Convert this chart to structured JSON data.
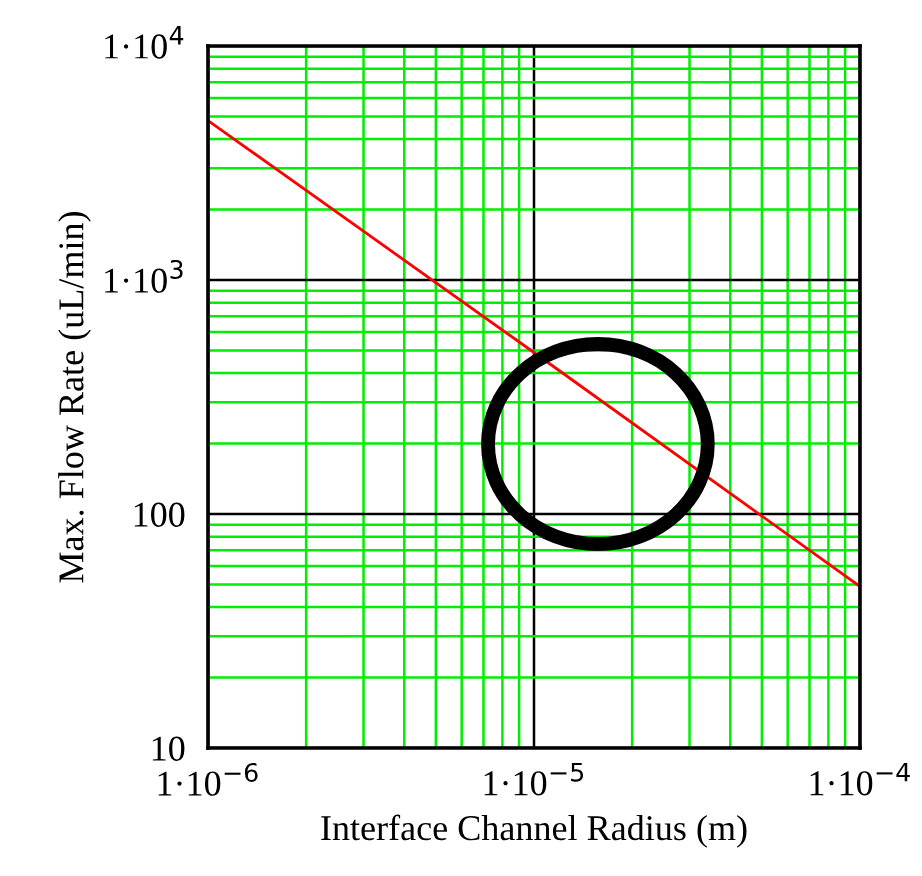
{
  "chart_data": {
    "type": "line",
    "xlabel": "Interface Channel Radius (m)",
    "ylabel": "Max. Flow Rate (uL/min)",
    "x": [
      1e-06,
      1e-05,
      0.0001
    ],
    "series": [
      {
        "color": "#ff0000",
        "values": [
          4800,
          490,
          49
        ]
      }
    ],
    "log": "xy",
    "xlim": [
      1e-06,
      0.0001
    ],
    "ylim": [
      10,
      10000
    ],
    "xticks": [
      {
        "value": 1e-06,
        "label": "1·10$^{−6}$"
      },
      {
        "value": 2e-06,
        "label": null
      },
      {
        "value": 3e-06,
        "label": null
      },
      {
        "value": 4e-06,
        "label": null
      },
      {
        "value": 5e-06,
        "label": null
      },
      {
        "value": 6e-06,
        "label": null
      },
      {
        "value": 7e-06,
        "label": null
      },
      {
        "value": 8e-06,
        "label": null
      },
      {
        "value": 9e-06,
        "label": null
      },
      {
        "value": 1e-05,
        "label": "1·10$^{−5}$"
      },
      {
        "value": 2e-05,
        "label": null
      },
      {
        "value": 3e-05,
        "label": null
      },
      {
        "value": 4e-05,
        "label": null
      },
      {
        "value": 5e-05,
        "label": null
      },
      {
        "value": 6e-05,
        "label": null
      },
      {
        "value": 7e-05,
        "label": null
      },
      {
        "value": 8e-05,
        "label": null
      },
      {
        "value": 9e-05,
        "label": null
      },
      {
        "value": 0.0001,
        "label": "1·10$^{−4}$"
      }
    ],
    "yticks": [
      10,
      {
        "value": 20,
        "label": null
      },
      {
        "value": 30,
        "label": null
      },
      {
        "value": 40,
        "label": null
      },
      {
        "value": 50,
        "label": null
      },
      {
        "value": 60,
        "label": null
      },
      {
        "value": 70,
        "label": null
      },
      {
        "value": 80,
        "label": null
      },
      {
        "value": 90,
        "label": null
      },
      100,
      {
        "value": 200,
        "label": null
      },
      {
        "value": 300,
        "label": null
      },
      {
        "value": 400,
        "label": null
      },
      {
        "value": 500,
        "label": null
      },
      {
        "value": 600,
        "label": null
      },
      {
        "value": 700,
        "label": null
      },
      {
        "value": 800,
        "label": null
      },
      {
        "value": 900,
        "label": null
      },
      {
        "value": 1000,
        "label": "1·10$^{3}$"
      },
      {
        "value": 2000,
        "label": null
      },
      {
        "value": 3000,
        "label": null
      },
      {
        "value": 4000,
        "label": null
      },
      {
        "value": 5000,
        "label": null
      },
      {
        "value": 6000,
        "label": null
      },
      {
        "value": 7000,
        "label": null
      },
      {
        "value": 8000,
        "label": null
      },
      {
        "value": 9000,
        "label": null
      },
      {
        "value": 10000,
        "label": "1·10$^{4}$"
      }
    ],
    "grid": true
  }
}
